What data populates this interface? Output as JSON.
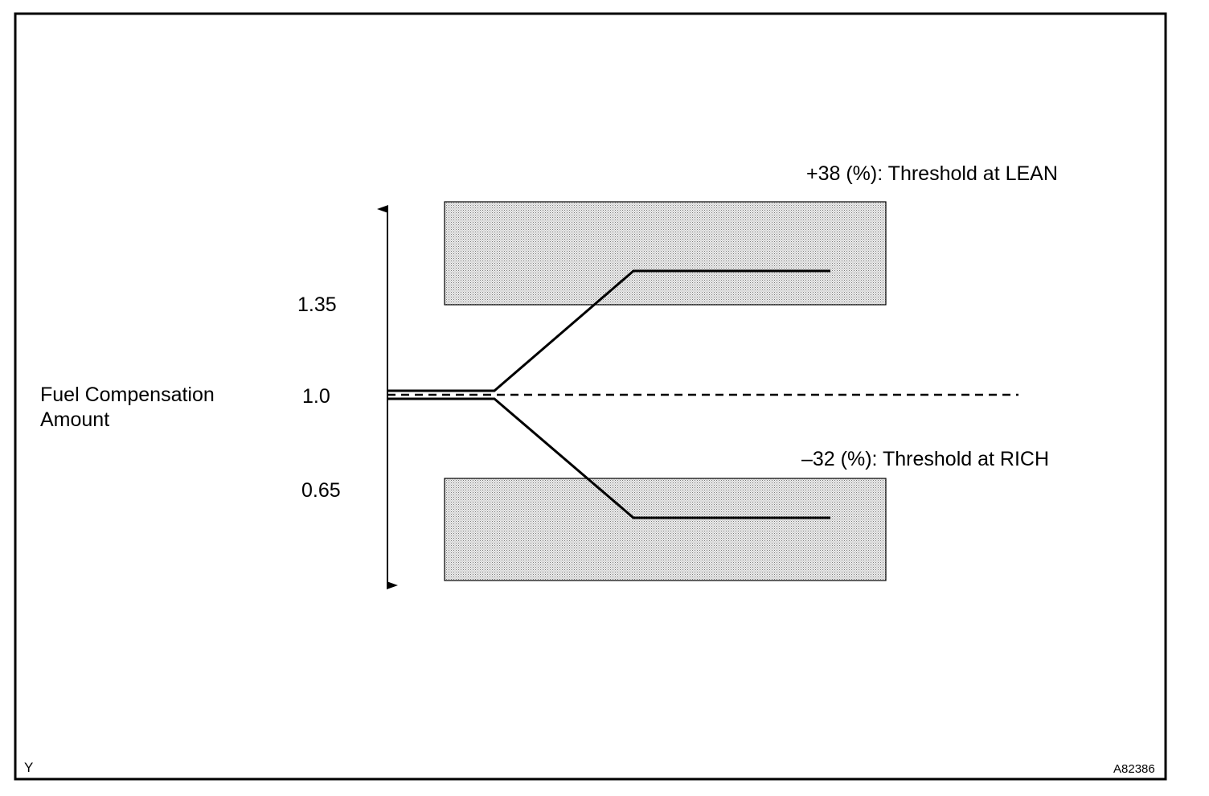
{
  "thresholds": {
    "lean": "+38 (%): Threshold at LEAN",
    "rich": "–32 (%): Threshold at RICH"
  },
  "axis": {
    "label_lines": [
      "Fuel Compensation",
      "Amount"
    ],
    "upper": "1.35",
    "center": "1.0",
    "lower": "0.65"
  },
  "footer": {
    "left": "Y",
    "right": "A82386"
  }
}
